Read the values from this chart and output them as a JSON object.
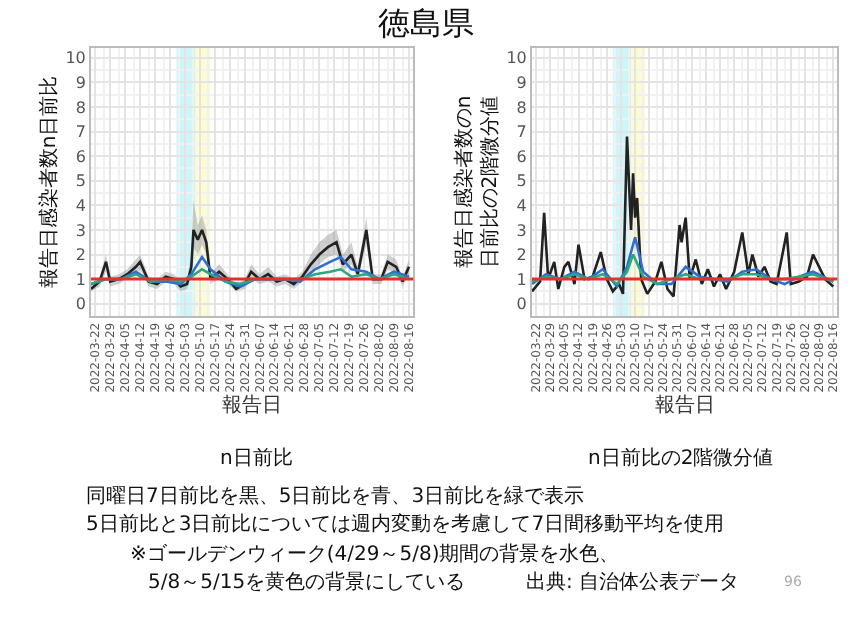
{
  "chart_data": [
    {
      "type": "line",
      "title": "n日前比",
      "annotations": [
        "徳島県"
      ],
      "xlabel": "報告日",
      "ylabel": "報告日感染者数n日前比",
      "xlim": [
        "2022-03-20",
        "2022-08-18"
      ],
      "ylim": [
        -0.5,
        10.4
      ],
      "yticks": [
        0,
        1,
        2,
        3,
        4,
        5,
        6,
        7,
        8,
        9,
        10
      ],
      "xticks": [
        "2022-03-22",
        "2022-03-29",
        "2022-04-05",
        "2022-04-12",
        "2022-04-19",
        "2022-04-26",
        "2022-05-03",
        "2022-05-10",
        "2022-05-17",
        "2022-05-24",
        "2022-05-31",
        "2022-06-07",
        "2022-06-14",
        "2022-06-21",
        "2022-06-28",
        "2022-07-05",
        "2022-07-12",
        "2022-07-19",
        "2022-07-26",
        "2022-08-02",
        "2022-08-09",
        "2022-08-16"
      ],
      "grid": true,
      "bands": [
        {
          "axis": "x",
          "from": "2022-04-29",
          "to": "2022-05-08",
          "color": "#ccf6fa"
        },
        {
          "axis": "x",
          "from": "2022-05-08",
          "to": "2022-05-15",
          "color": "#fdfbd2"
        }
      ],
      "ref_lines": [
        {
          "axis": "y",
          "value": 1,
          "color": "#e8302a"
        }
      ],
      "series": [
        {
          "color": "#222222",
          "x": [
            "2022-03-20",
            "2022-03-24",
            "2022-03-27",
            "2022-03-29",
            "2022-04-02",
            "2022-04-06",
            "2022-04-10",
            "2022-04-12",
            "2022-04-16",
            "2022-04-20",
            "2022-04-24",
            "2022-04-28",
            "2022-05-01",
            "2022-05-04",
            "2022-05-06",
            "2022-05-07",
            "2022-05-09",
            "2022-05-11",
            "2022-05-13",
            "2022-05-15",
            "2022-05-19",
            "2022-05-23",
            "2022-05-27",
            "2022-05-31",
            "2022-06-03",
            "2022-06-07",
            "2022-06-11",
            "2022-06-15",
            "2022-06-19",
            "2022-06-23",
            "2022-06-27",
            "2022-07-01",
            "2022-07-05",
            "2022-07-09",
            "2022-07-13",
            "2022-07-16",
            "2022-07-20",
            "2022-07-23",
            "2022-07-27",
            "2022-07-30",
            "2022-08-03",
            "2022-08-06",
            "2022-08-10",
            "2022-08-13",
            "2022-08-16"
          ],
          "values": [
            0.6,
            0.9,
            1.7,
            0.9,
            1.0,
            1.2,
            1.5,
            1.7,
            0.9,
            0.8,
            1.1,
            1.0,
            0.7,
            0.8,
            1.5,
            3.0,
            2.6,
            3.0,
            2.5,
            1.0,
            1.3,
            1.0,
            0.6,
            0.8,
            1.3,
            1.0,
            1.2,
            0.9,
            1.0,
            0.8,
            1.1,
            1.6,
            2.0,
            2.3,
            2.5,
            1.6,
            2.0,
            1.2,
            3.0,
            1.0,
            1.0,
            1.7,
            1.5,
            0.9,
            1.5
          ],
          "lower": [
            0.5,
            0.7,
            1.3,
            0.7,
            0.8,
            1.0,
            1.2,
            1.4,
            0.7,
            0.6,
            0.9,
            0.8,
            0.5,
            0.6,
            1.1,
            2.3,
            2.0,
            2.4,
            2.0,
            0.8,
            1.0,
            0.8,
            0.5,
            0.6,
            1.0,
            0.8,
            0.9,
            0.7,
            0.8,
            0.6,
            0.9,
            1.3,
            1.6,
            1.9,
            2.0,
            1.3,
            1.6,
            1.0,
            2.4,
            0.8,
            0.8,
            1.4,
            1.2,
            0.7,
            1.2
          ],
          "upper": [
            0.8,
            1.1,
            2.0,
            1.1,
            1.2,
            1.4,
            1.8,
            2.0,
            1.1,
            1.0,
            1.3,
            1.2,
            0.9,
            1.0,
            2.0,
            4.2,
            3.2,
            3.6,
            3.0,
            1.2,
            1.6,
            1.2,
            0.8,
            1.0,
            1.6,
            1.2,
            1.5,
            1.1,
            1.2,
            1.0,
            1.3,
            2.0,
            2.5,
            2.8,
            3.0,
            2.0,
            2.5,
            1.5,
            3.5,
            1.2,
            1.2,
            2.0,
            1.8,
            1.1,
            1.8
          ]
        },
        {
          "color": "#2f6fd0",
          "x": [
            "2022-03-20",
            "2022-03-27",
            "2022-04-03",
            "2022-04-10",
            "2022-04-17",
            "2022-04-24",
            "2022-05-01",
            "2022-05-06",
            "2022-05-11",
            "2022-05-15",
            "2022-05-22",
            "2022-05-29",
            "2022-06-05",
            "2022-06-12",
            "2022-06-19",
            "2022-06-26",
            "2022-07-03",
            "2022-07-10",
            "2022-07-15",
            "2022-07-20",
            "2022-07-27",
            "2022-08-02",
            "2022-08-09",
            "2022-08-16"
          ],
          "values": [
            0.8,
            1.0,
            1.0,
            1.3,
            0.9,
            0.9,
            0.8,
            1.2,
            1.9,
            1.4,
            0.9,
            0.7,
            1.0,
            1.0,
            1.0,
            0.9,
            1.4,
            1.7,
            1.9,
            1.4,
            1.3,
            1.0,
            1.3,
            1.1
          ]
        },
        {
          "color": "#2aa87e",
          "x": [
            "2022-03-20",
            "2022-03-27",
            "2022-04-03",
            "2022-04-10",
            "2022-04-17",
            "2022-04-24",
            "2022-05-01",
            "2022-05-06",
            "2022-05-11",
            "2022-05-15",
            "2022-05-22",
            "2022-05-29",
            "2022-06-05",
            "2022-06-12",
            "2022-06-19",
            "2022-06-26",
            "2022-07-03",
            "2022-07-10",
            "2022-07-15",
            "2022-07-20",
            "2022-07-27",
            "2022-08-02",
            "2022-08-09",
            "2022-08-16"
          ],
          "values": [
            0.8,
            1.0,
            1.0,
            1.2,
            0.9,
            1.0,
            0.9,
            1.1,
            1.4,
            1.2,
            0.9,
            0.8,
            1.0,
            1.0,
            1.0,
            1.0,
            1.2,
            1.3,
            1.4,
            1.1,
            1.2,
            1.0,
            1.2,
            1.0
          ]
        }
      ]
    },
    {
      "type": "line",
      "title": "n日前比の2階微分値",
      "annotations": [
        "同曜日7日前比を黒、5日前比を青、3日前比を緑で表示",
        "5日前比と3日前比については週内変動を考慮して7日間移動平均を使用",
        "※ゴールデンウィーク(4/29～5/8)期間の背景を水色、",
        "5/8～5/15を黄色の背景にしている",
        "出典: 自治体公表データ",
        "96"
      ],
      "xlabel": "報告日",
      "ylabel": "報告日感染者数のn日前比の2階微分値",
      "xlim": [
        "2022-03-20",
        "2022-08-18"
      ],
      "ylim": [
        -0.5,
        10.4
      ],
      "yticks": [
        0,
        1,
        2,
        3,
        4,
        5,
        6,
        7,
        8,
        9,
        10
      ],
      "xticks": [
        "2022-03-22",
        "2022-03-29",
        "2022-04-05",
        "2022-04-12",
        "2022-04-19",
        "2022-04-26",
        "2022-05-03",
        "2022-05-10",
        "2022-05-17",
        "2022-05-24",
        "2022-05-31",
        "2022-06-07",
        "2022-06-14",
        "2022-06-21",
        "2022-06-28",
        "2022-07-05",
        "2022-07-12",
        "2022-07-19",
        "2022-07-26",
        "2022-08-02",
        "2022-08-09",
        "2022-08-16"
      ],
      "grid": true,
      "bands": [
        {
          "axis": "x",
          "from": "2022-04-29",
          "to": "2022-05-08",
          "color": "#ccf6fa"
        },
        {
          "axis": "x",
          "from": "2022-05-08",
          "to": "2022-05-15",
          "color": "#fdfbd2"
        }
      ],
      "ref_lines": [
        {
          "axis": "y",
          "value": 1,
          "color": "#e8302a"
        }
      ],
      "series": [
        {
          "color": "#222222",
          "x": [
            "2022-03-20",
            "2022-03-24",
            "2022-03-26",
            "2022-03-28",
            "2022-03-31",
            "2022-04-02",
            "2022-04-05",
            "2022-04-07",
            "2022-04-10",
            "2022-04-12",
            "2022-04-15",
            "2022-04-19",
            "2022-04-23",
            "2022-04-26",
            "2022-04-29",
            "2022-05-02",
            "2022-05-04",
            "2022-05-06",
            "2022-05-08",
            "2022-05-09",
            "2022-05-10",
            "2022-05-11",
            "2022-05-13",
            "2022-05-16",
            "2022-05-20",
            "2022-05-23",
            "2022-05-26",
            "2022-05-29",
            "2022-06-01",
            "2022-06-02",
            "2022-06-04",
            "2022-06-06",
            "2022-06-09",
            "2022-06-12",
            "2022-06-15",
            "2022-06-18",
            "2022-06-21",
            "2022-06-24",
            "2022-06-28",
            "2022-07-02",
            "2022-07-05",
            "2022-07-07",
            "2022-07-10",
            "2022-07-13",
            "2022-07-16",
            "2022-07-19",
            "2022-07-24",
            "2022-07-26",
            "2022-07-30",
            "2022-08-03",
            "2022-08-06",
            "2022-08-09",
            "2022-08-12",
            "2022-08-16"
          ],
          "values": [
            0.5,
            0.9,
            3.7,
            1.0,
            1.7,
            0.6,
            1.5,
            1.7,
            0.8,
            2.4,
            1.0,
            1.1,
            2.1,
            1.0,
            0.5,
            0.8,
            0.4,
            6.8,
            3.0,
            5.3,
            3.5,
            4.3,
            1.0,
            0.4,
            0.9,
            1.7,
            0.6,
            0.3,
            3.2,
            2.5,
            3.5,
            1.0,
            1.8,
            0.8,
            1.4,
            0.7,
            1.2,
            0.6,
            1.3,
            2.9,
            1.2,
            2.0,
            1.1,
            1.5,
            0.9,
            0.8,
            2.9,
            0.8,
            0.9,
            1.1,
            2.0,
            1.5,
            1.0,
            0.7
          ]
        },
        {
          "color": "#2f6fd0",
          "x": [
            "2022-03-20",
            "2022-03-27",
            "2022-04-03",
            "2022-04-10",
            "2022-04-17",
            "2022-04-24",
            "2022-05-01",
            "2022-05-06",
            "2022-05-10",
            "2022-05-14",
            "2022-05-21",
            "2022-05-28",
            "2022-06-04",
            "2022-06-11",
            "2022-06-18",
            "2022-06-25",
            "2022-07-02",
            "2022-07-09",
            "2022-07-16",
            "2022-07-23",
            "2022-07-30",
            "2022-08-06",
            "2022-08-16"
          ],
          "values": [
            0.8,
            1.2,
            1.0,
            1.3,
            1.0,
            1.4,
            0.7,
            1.5,
            2.7,
            1.3,
            0.8,
            0.8,
            1.5,
            1.1,
            1.0,
            0.9,
            1.3,
            1.4,
            1.0,
            0.8,
            1.1,
            1.3,
            0.9
          ]
        },
        {
          "color": "#2aa87e",
          "x": [
            "2022-03-20",
            "2022-03-27",
            "2022-04-03",
            "2022-04-10",
            "2022-04-17",
            "2022-04-24",
            "2022-05-01",
            "2022-05-06",
            "2022-05-09",
            "2022-05-14",
            "2022-05-21",
            "2022-05-28",
            "2022-06-04",
            "2022-06-11",
            "2022-06-18",
            "2022-06-25",
            "2022-07-02",
            "2022-07-09",
            "2022-07-16",
            "2022-07-23",
            "2022-07-30",
            "2022-08-06",
            "2022-08-16"
          ],
          "values": [
            0.9,
            1.1,
            1.0,
            1.2,
            1.0,
            1.2,
            0.8,
            1.3,
            2.0,
            1.1,
            0.8,
            1.0,
            1.2,
            1.0,
            1.0,
            1.0,
            1.2,
            1.2,
            1.0,
            1.0,
            1.1,
            1.2,
            0.9
          ]
        }
      ]
    }
  ]
}
